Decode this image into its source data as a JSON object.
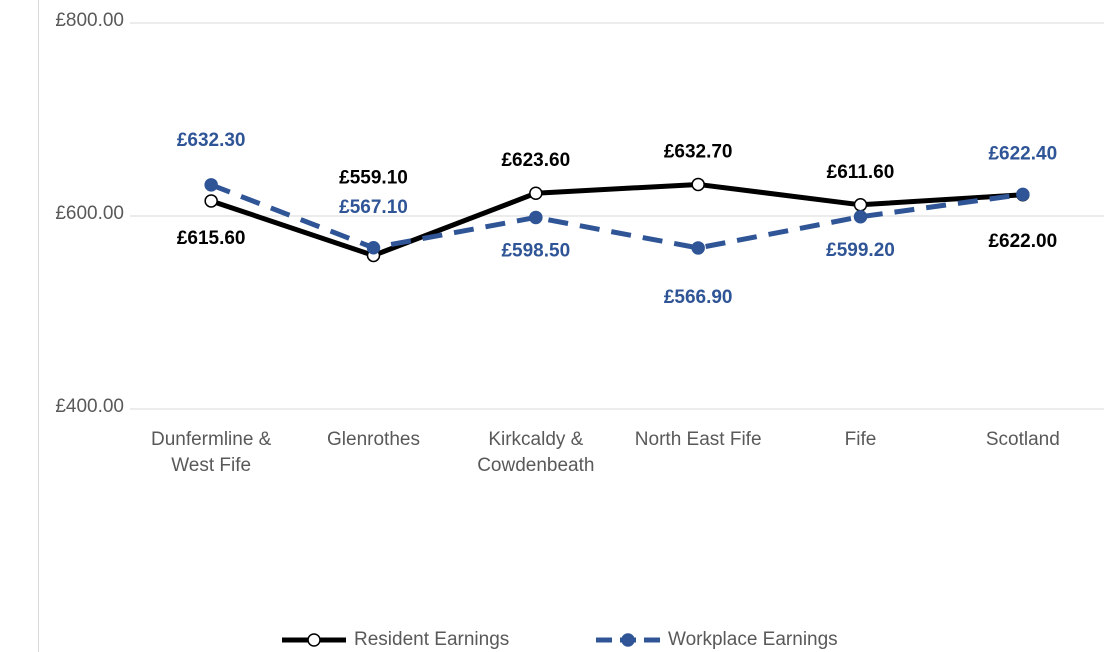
{
  "chart_data": {
    "type": "line",
    "categories": [
      "Dunfermline & West Fife",
      "Glenrothes",
      "Kirkcaldy & Cowdenbeath",
      "North East Fife",
      "Fife",
      "Scotland"
    ],
    "series": [
      {
        "name": "Resident Earnings",
        "color": "#000000",
        "dashed": false,
        "marker_fill": "#ffffff",
        "values": [
          615.6,
          559.1,
          623.6,
          632.7,
          611.6,
          622.0
        ],
        "value_labels": [
          "£615.60",
          "£559.10",
          "£623.60",
          "£632.70",
          "£611.60",
          "£622.00"
        ]
      },
      {
        "name": "Workplace Earnings",
        "color": "#2f5597",
        "dashed": true,
        "marker_fill": "#2f5597",
        "values": [
          632.3,
          567.1,
          598.5,
          566.9,
          599.2,
          622.4
        ],
        "value_labels": [
          "£632.30",
          "£567.10",
          "£598.50",
          "£566.90",
          "£599.20",
          "£622.40"
        ]
      }
    ],
    "ylim": [
      400,
      800
    ],
    "yticks": [
      {
        "value": 400,
        "label": "£400.00"
      },
      {
        "value": 600,
        "label": "£600.00"
      },
      {
        "value": 800,
        "label": "£800.00"
      }
    ],
    "grid": true,
    "legend": "bottom"
  }
}
